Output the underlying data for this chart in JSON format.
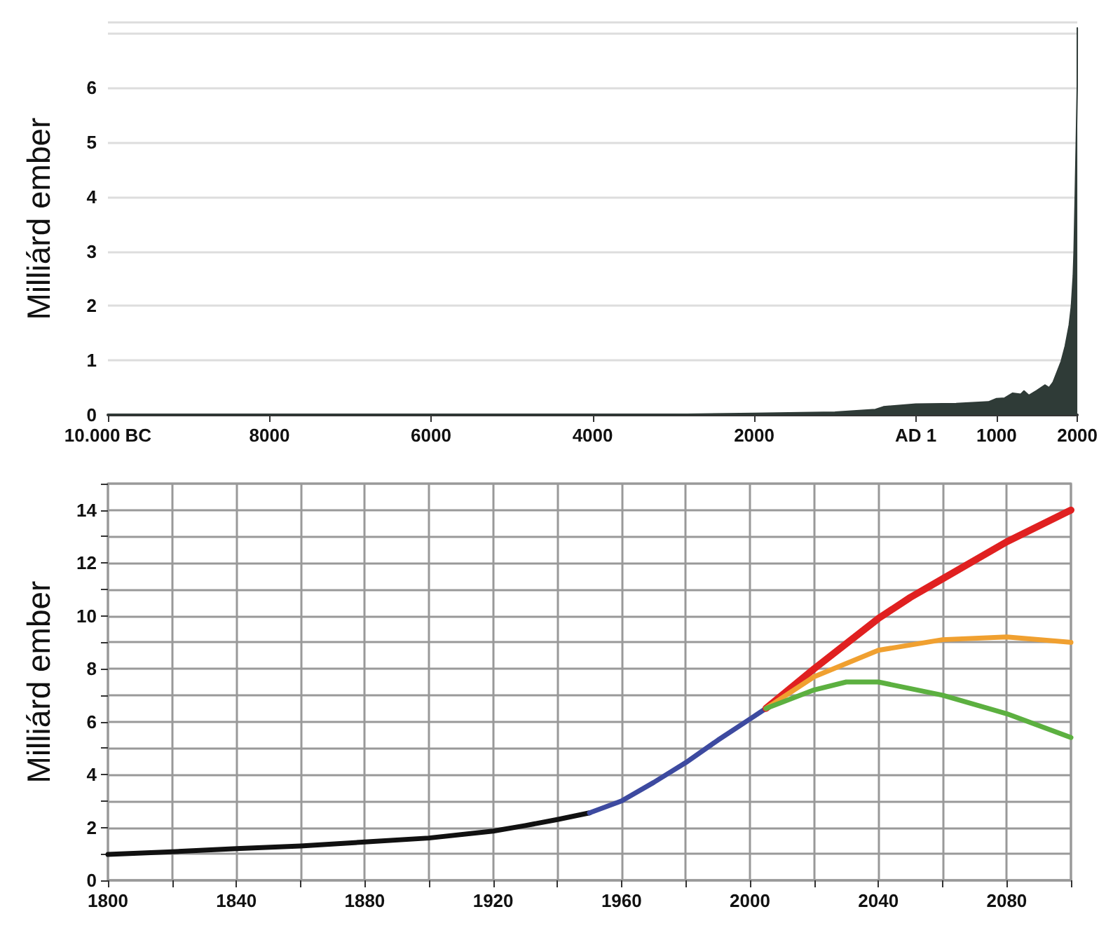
{
  "chart_data": [
    {
      "type": "area",
      "ylabel": "Milliárd ember",
      "xlim": [
        -10000,
        2000
      ],
      "ylim": [
        0,
        7.2
      ],
      "xticks": [
        {
          "value": -10000,
          "label": "10.000 BC"
        },
        {
          "value": -8000,
          "label": "8000"
        },
        {
          "value": -6000,
          "label": "6000"
        },
        {
          "value": -4000,
          "label": "4000"
        },
        {
          "value": -2000,
          "label": "2000"
        },
        {
          "value": 0,
          "label": "AD 1"
        },
        1000,
        2000
      ],
      "yticks": [
        0,
        1,
        2,
        3,
        4,
        5,
        6
      ],
      "grid": "y",
      "x": [
        -10000,
        -8000,
        -6000,
        -4000,
        -3000,
        -2000,
        -1000,
        -500,
        -400,
        0,
        500,
        900,
        1000,
        1100,
        1200,
        1300,
        1340,
        1400,
        1500,
        1600,
        1650,
        1700,
        1750,
        1800,
        1850,
        1900,
        1927,
        1950,
        1960,
        1974,
        1987,
        1999,
        2000
      ],
      "series": [
        {
          "color": "#2f3b37",
          "values": [
            0.01,
            0.01,
            0.01,
            0.01,
            0.01,
            0.03,
            0.05,
            0.1,
            0.15,
            0.2,
            0.21,
            0.24,
            0.3,
            0.31,
            0.4,
            0.38,
            0.44,
            0.36,
            0.45,
            0.55,
            0.5,
            0.6,
            0.79,
            0.98,
            1.26,
            1.65,
            2.0,
            2.55,
            3.0,
            4.0,
            5.0,
            6.0,
            7.1
          ]
        }
      ]
    },
    {
      "type": "line",
      "ylabel": "Milliárd ember",
      "xlim": [
        1800,
        2100
      ],
      "ylim": [
        0,
        15
      ],
      "xticks": [
        1800,
        {
          "value": 1820,
          "label": null
        },
        1840,
        {
          "value": 1860,
          "label": null
        },
        1880,
        {
          "value": 1900,
          "label": null
        },
        1920,
        {
          "value": 1940,
          "label": null
        },
        1960,
        {
          "value": 1980,
          "label": null
        },
        2000,
        {
          "value": 2020,
          "label": null
        },
        2040,
        {
          "value": 2060,
          "label": null
        },
        2080,
        {
          "value": 2100,
          "label": null
        }
      ],
      "yticks": [
        0,
        {
          "value": 1,
          "label": null
        },
        2,
        {
          "value": 3,
          "label": null
        },
        4,
        {
          "value": 5,
          "label": null
        },
        6,
        {
          "value": 7,
          "label": null
        },
        8,
        {
          "value": 9,
          "label": null
        },
        10,
        {
          "value": 11,
          "label": null
        },
        12,
        {
          "value": 13,
          "label": null
        },
        14,
        {
          "value": 15,
          "label": null
        }
      ],
      "grid": true,
      "line_style": "solid",
      "series": [
        {
          "color": "#111111",
          "x": [
            1800,
            1820,
            1840,
            1860,
            1880,
            1900,
            1920,
            1930,
            1940,
            1950
          ],
          "values": [
            0.98,
            1.08,
            1.2,
            1.3,
            1.45,
            1.6,
            1.86,
            2.07,
            2.3,
            2.55
          ]
        },
        {
          "color": "#3d4aa0",
          "x": [
            1950,
            1960,
            1970,
            1980,
            1990,
            2000,
            2005
          ],
          "values": [
            2.55,
            3.0,
            3.7,
            4.45,
            5.3,
            6.1,
            6.5
          ]
        },
        {
          "color": "#e02020",
          "x": [
            2005,
            2020,
            2040,
            2050,
            2060,
            2080,
            2100
          ],
          "values": [
            6.5,
            8.0,
            9.9,
            10.7,
            11.4,
            12.8,
            14.0
          ]
        },
        {
          "color": "#f0a030",
          "x": [
            2005,
            2020,
            2040,
            2060,
            2080,
            2100
          ],
          "values": [
            6.5,
            7.7,
            8.7,
            9.1,
            9.2,
            9.0
          ]
        },
        {
          "color": "#5cb040",
          "x": [
            2005,
            2020,
            2030,
            2040,
            2060,
            2080,
            2100
          ],
          "values": [
            6.5,
            7.2,
            7.5,
            7.5,
            7.0,
            6.3,
            5.4
          ]
        }
      ]
    }
  ]
}
